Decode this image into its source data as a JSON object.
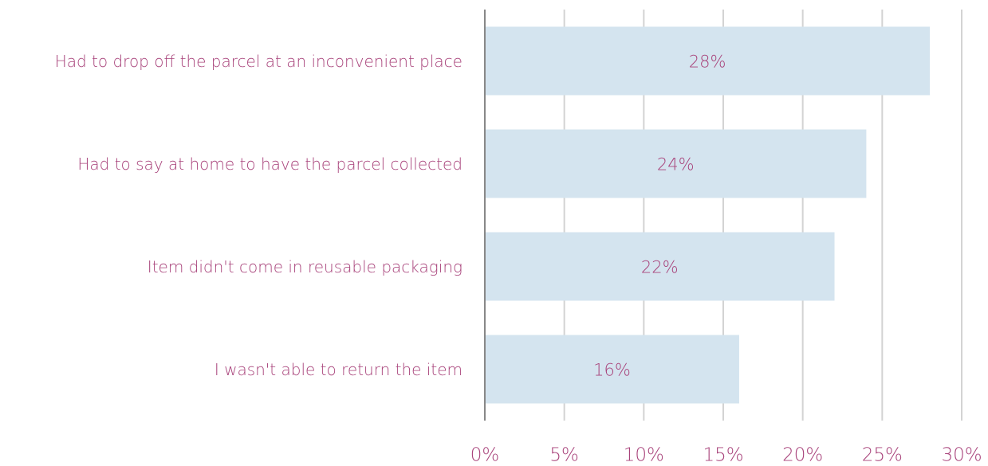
{
  "chart_data": {
    "type": "barh",
    "categories": [
      "Had to drop off the parcel at an inconvenient place",
      "Had to say at home to have the parcel collected",
      "Item didn't come in reusable packaging",
      "I wasn't able to return the item"
    ],
    "values": [
      28,
      24,
      22,
      16
    ],
    "value_labels": [
      "28%",
      "24%",
      "22%",
      "16%"
    ],
    "color": "#d4e4ef",
    "xlim": [
      0,
      30
    ],
    "xticks": [
      {
        "value": 0,
        "label": "0%"
      },
      {
        "value": 5,
        "label": "5%"
      },
      {
        "value": 10,
        "label": "10%"
      },
      {
        "value": 15,
        "label": "15%"
      },
      {
        "value": 20,
        "label": "20%"
      },
      {
        "value": 25,
        "label": "25%"
      },
      {
        "value": 30,
        "label": "30%"
      }
    ],
    "grid": true
  }
}
